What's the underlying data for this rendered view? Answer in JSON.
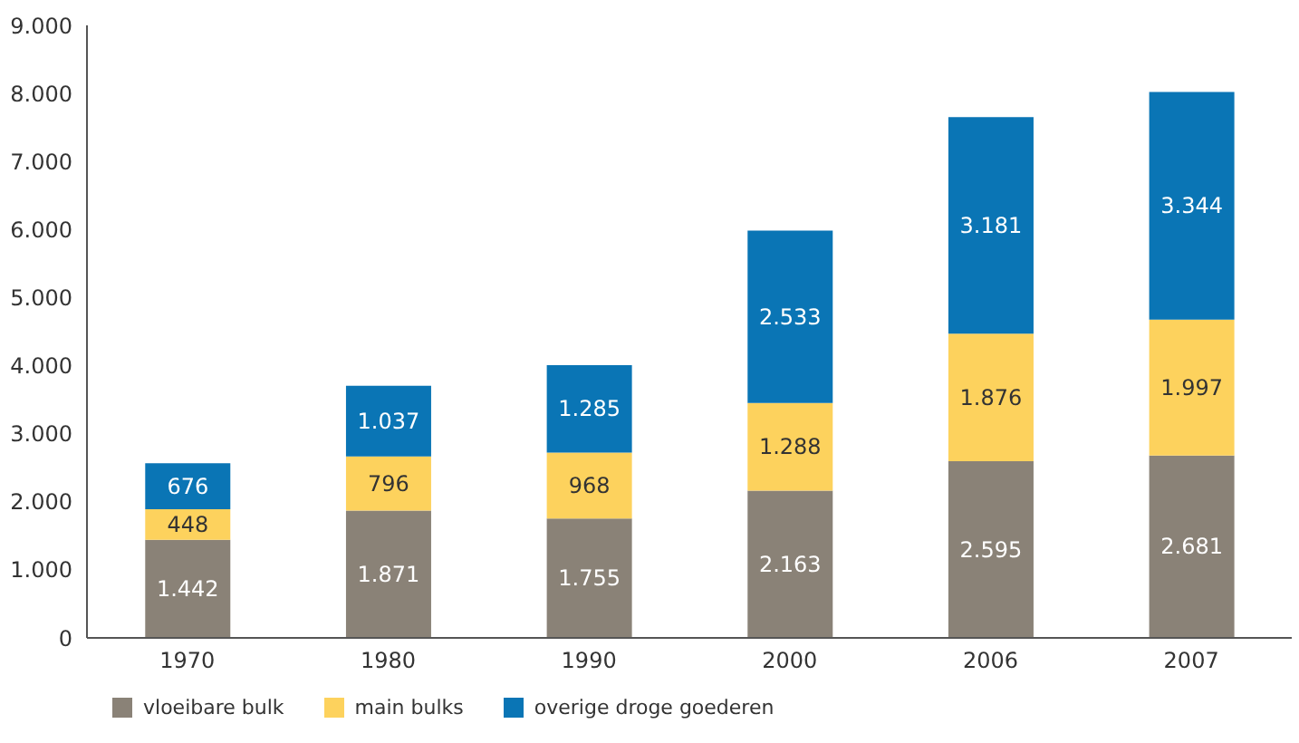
{
  "chart_data": {
    "type": "bar",
    "stacked": true,
    "categories": [
      "1970",
      "1980",
      "1990",
      "2000",
      "2006",
      "2007"
    ],
    "series": [
      {
        "name": "vloeibare bulk",
        "color": "#8a8277",
        "values": [
          1442,
          1871,
          1755,
          2163,
          2595,
          2681
        ],
        "value_labels": [
          "1.442",
          "1.871",
          "1.755",
          "2.163",
          "2.595",
          "2.681"
        ]
      },
      {
        "name": "main bulks",
        "color": "#fdd25d",
        "values": [
          448,
          796,
          968,
          1288,
          1876,
          1997
        ],
        "value_labels": [
          "448",
          "796",
          "968",
          "1.288",
          "1.876",
          "1.997"
        ]
      },
      {
        "name": "overige droge goederen",
        "color": "#0a75b5",
        "values": [
          676,
          1037,
          1285,
          2533,
          3181,
          3344
        ],
        "value_labels": [
          "676",
          "1.037",
          "1.285",
          "2.533",
          "3.181",
          "3.344"
        ]
      }
    ],
    "ylim": [
      0,
      9000
    ],
    "yticks": [
      {
        "value": 0,
        "label": "0"
      },
      {
        "value": 1000,
        "label": "1.000"
      },
      {
        "value": 2000,
        "label": "2.000"
      },
      {
        "value": 3000,
        "label": "3.000"
      },
      {
        "value": 4000,
        "label": "4.000"
      },
      {
        "value": 5000,
        "label": "5.000"
      },
      {
        "value": 6000,
        "label": "6.000"
      },
      {
        "value": 7000,
        "label": "7.000"
      },
      {
        "value": 8000,
        "label": "8.000"
      },
      {
        "value": 9000,
        "label": "9.000"
      }
    ],
    "grid": false,
    "legend": "bottom left"
  }
}
